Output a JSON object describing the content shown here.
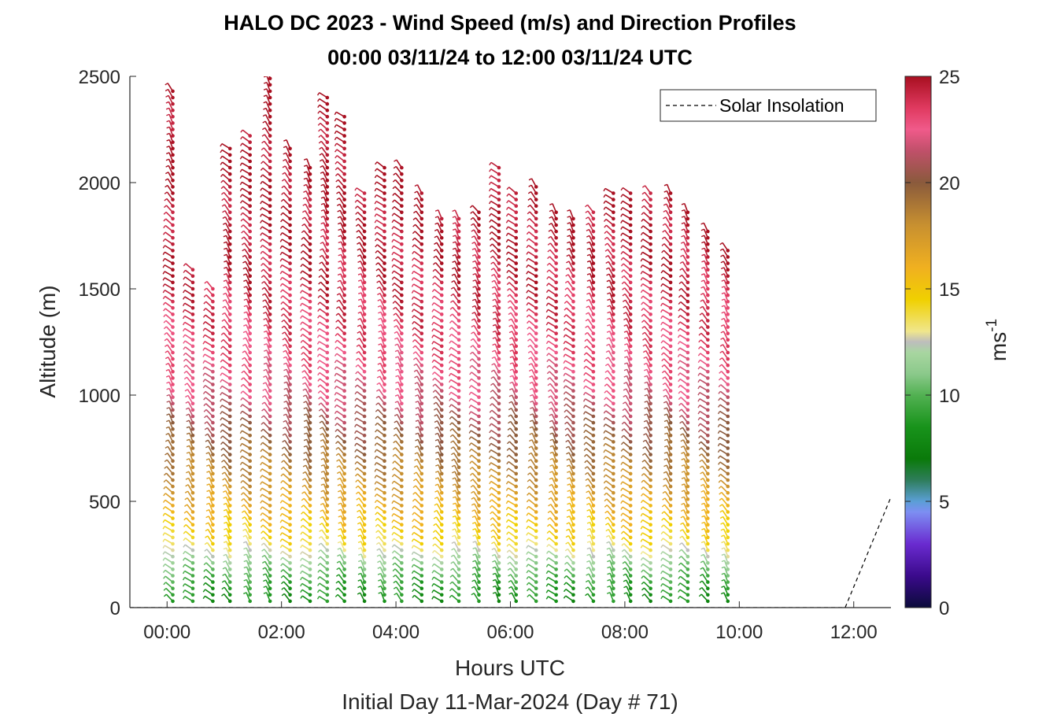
{
  "chart_data": {
    "type": "scatter",
    "subtype": "wind-barb-profiles",
    "title": "HALO DC 2023 - Wind Speed (m/s) and Direction Profiles",
    "subtitle": "00:00 03/11/24 to 12:00 03/11/24  UTC",
    "xlabel": "Hours UTC",
    "xlabel2": "Initial Day 11-Mar-2024 (Day # 71)",
    "ylabel": "Altitude (m)",
    "colorbar_label": "ms",
    "colorbar_label_exp": "-1",
    "x_tick_labels": [
      "00:00",
      "02:00",
      "04:00",
      "06:00",
      "08:00",
      "10:00",
      "12:00"
    ],
    "x_tick_values": [
      0,
      2,
      4,
      6,
      8,
      10,
      12
    ],
    "xlim": [
      -0.65,
      12.65
    ],
    "ylim": [
      0,
      2500
    ],
    "y_ticks": [
      "0",
      "500",
      "1000",
      "1500",
      "2000",
      "2500"
    ],
    "y_tick_values": [
      0,
      500,
      1000,
      1500,
      2000,
      2500
    ],
    "colorbar_ticks": [
      "0",
      "5",
      "10",
      "15",
      "20",
      "25"
    ],
    "colorbar_tick_values": [
      0,
      5,
      10,
      15,
      20,
      25
    ],
    "clim": [
      0,
      25
    ],
    "legend": {
      "label": "Solar Insolation",
      "position": "top-right"
    },
    "solar_insolation": {
      "x": [
        -0.65,
        11.85,
        12.65
      ],
      "y": [
        0,
        0,
        520
      ]
    },
    "colormap": [
      [
        0,
        "#0b0b3b"
      ],
      [
        1.5,
        "#3b0a8c"
      ],
      [
        3,
        "#6a2bd0"
      ],
      [
        4.5,
        "#7d8ef2"
      ],
      [
        5,
        "#5b9fd6"
      ],
      [
        6,
        "#2e7d5b"
      ],
      [
        7,
        "#0a7a0a"
      ],
      [
        8.5,
        "#18931b"
      ],
      [
        10,
        "#52b152"
      ],
      [
        11,
        "#8bc98b"
      ],
      [
        12,
        "#a8d6a0"
      ],
      [
        12.5,
        "#bdbdbd"
      ],
      [
        13,
        "#f0e68c"
      ],
      [
        14.5,
        "#f0d000"
      ],
      [
        16,
        "#f0b020"
      ],
      [
        18,
        "#c89030"
      ],
      [
        20,
        "#8a5a3c"
      ],
      [
        21.5,
        "#c0506a"
      ],
      [
        22.5,
        "#f05a8a"
      ],
      [
        23.5,
        "#e03a60"
      ],
      [
        25,
        "#a80f20"
      ]
    ],
    "profiles": [
      {
        "time": 0.1,
        "top": 2450
      },
      {
        "time": 0.45,
        "top": 1610
      },
      {
        "time": 0.8,
        "top": 1500
      },
      {
        "time": 1.1,
        "top": 2180
      },
      {
        "time": 1.45,
        "top": 2230
      },
      {
        "time": 1.8,
        "top": 2500
      },
      {
        "time": 2.15,
        "top": 2180
      },
      {
        "time": 2.5,
        "top": 2090
      },
      {
        "time": 2.8,
        "top": 2410
      },
      {
        "time": 3.1,
        "top": 2330
      },
      {
        "time": 3.45,
        "top": 1950
      },
      {
        "time": 3.8,
        "top": 2080
      },
      {
        "time": 4.1,
        "top": 2080
      },
      {
        "time": 4.45,
        "top": 1950
      },
      {
        "time": 4.8,
        "top": 1830
      },
      {
        "time": 5.1,
        "top": 1830
      },
      {
        "time": 5.45,
        "top": 1880
      },
      {
        "time": 5.8,
        "top": 2080
      },
      {
        "time": 6.1,
        "top": 1950
      },
      {
        "time": 6.45,
        "top": 2000
      },
      {
        "time": 6.8,
        "top": 1880
      },
      {
        "time": 7.1,
        "top": 1830
      },
      {
        "time": 7.45,
        "top": 1880
      },
      {
        "time": 7.8,
        "top": 1950
      },
      {
        "time": 8.1,
        "top": 1950
      },
      {
        "time": 8.45,
        "top": 1950
      },
      {
        "time": 8.8,
        "top": 1950
      },
      {
        "time": 9.1,
        "top": 1880
      },
      {
        "time": 9.45,
        "top": 1770
      },
      {
        "time": 9.8,
        "top": 1700
      }
    ],
    "speed_profile": [
      [
        0,
        8
      ],
      [
        100,
        9
      ],
      [
        200,
        11
      ],
      [
        300,
        14
      ],
      [
        450,
        16
      ],
      [
        600,
        18
      ],
      [
        800,
        20
      ],
      [
        1000,
        22
      ],
      [
        1300,
        23.5
      ],
      [
        1600,
        24.5
      ],
      [
        2000,
        25
      ],
      [
        2500,
        25
      ]
    ],
    "direction_range_deg": [
      200,
      240
    ]
  }
}
